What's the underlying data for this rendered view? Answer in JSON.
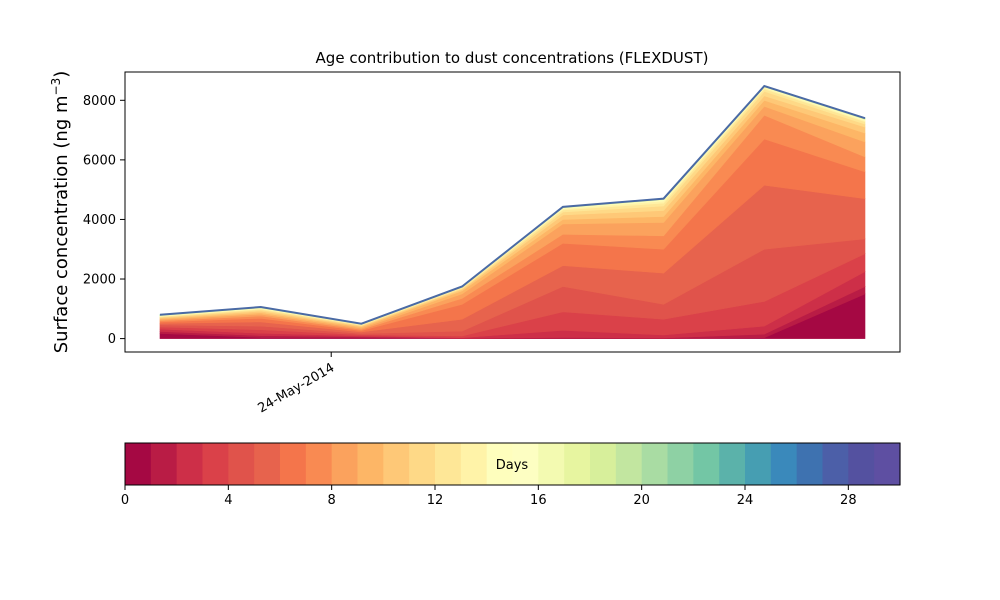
{
  "chart_data": [
    {
      "type": "area",
      "stacked": true,
      "title": "Age contribution to dust concentrations (FLEXDUST)",
      "ylabel_main": "Surface concentration (ng m",
      "ylabel_unit_exp": "−3",
      "ylabel_close": ")",
      "xlabel": "",
      "x_index": [
        0,
        1,
        2,
        3,
        4,
        5,
        6,
        7
      ],
      "x_tick_positions": [
        1.7
      ],
      "x_tick_labels": [
        "24-May-2014"
      ],
      "ylim": [
        -450,
        8950
      ],
      "yticks": [
        0,
        2000,
        4000,
        6000,
        8000
      ],
      "ytick_labels": [
        "0",
        "2000",
        "4000",
        "6000",
        "8000"
      ],
      "grid": false,
      "band_colors": [
        "#a50843",
        "#b91c45",
        "#cd2f48",
        "#da4149",
        "#e0534b",
        "#e7634d",
        "#f4754b",
        "#f98a52",
        "#fba25d",
        "#fdb666",
        "#fec877",
        "#fed987",
        "#fee797",
        "#fff3a8",
        "#fefebd",
        "#f3fab1",
        "#e7f5a0",
        "#d7ef9b",
        "#c2e6a0",
        "#a9dca3",
        "#8ed1a4",
        "#73c6a5",
        "#5bb2aa",
        "#469eb2",
        "#3a89bb",
        "#3e72b0",
        "#4c5fa8",
        "#5e4fa2"
      ],
      "totals": [
        800,
        1060,
        500,
        1750,
        4420,
        4700,
        8480,
        7400
      ],
      "band_cumulative_tops": [
        [
          170,
          40,
          30,
          0,
          0,
          0,
          30,
          1500
        ],
        [
          240,
          100,
          60,
          10,
          40,
          20,
          150,
          1750
        ],
        [
          320,
          180,
          90,
          30,
          280,
          120,
          420,
          2250
        ],
        [
          390,
          300,
          130,
          90,
          900,
          650,
          1250,
          2850
        ],
        [
          460,
          420,
          170,
          250,
          1750,
          1150,
          3000,
          3350
        ],
        [
          510,
          560,
          220,
          650,
          2450,
          2200,
          5150,
          4700
        ],
        [
          560,
          680,
          270,
          1150,
          3200,
          3000,
          6700,
          5600
        ],
        [
          600,
          760,
          310,
          1350,
          3500,
          3450,
          7500,
          6100
        ],
        [
          640,
          820,
          350,
          1500,
          3850,
          3900,
          7800,
          6600
        ],
        [
          670,
          870,
          390,
          1600,
          4000,
          4100,
          8000,
          6900
        ],
        [
          700,
          920,
          420,
          1650,
          4150,
          4300,
          8150,
          7100
        ],
        [
          720,
          960,
          440,
          1680,
          4250,
          4450,
          8300,
          7200
        ],
        [
          740,
          990,
          460,
          1710,
          4320,
          4550,
          8380,
          7280
        ],
        [
          755,
          1010,
          475,
          1725,
          4360,
          4620,
          8420,
          7320
        ],
        [
          765,
          1025,
          482,
          1732,
          4380,
          4650,
          8440,
          7345
        ],
        [
          772,
          1035,
          487,
          1737,
          4395,
          4670,
          8455,
          7362
        ],
        [
          778,
          1042,
          491,
          1741,
          4403,
          4682,
          8465,
          7375
        ],
        [
          784,
          1048,
          494,
          1744,
          4410,
          4690,
          8471,
          7385
        ],
        [
          789,
          1052,
          496,
          1746,
          4414,
          4694,
          8475,
          7392
        ],
        [
          793,
          1055,
          498,
          1748,
          4417,
          4697,
          8478,
          7396
        ],
        [
          796,
          1058,
          499,
          1749,
          4419,
          4699,
          8480,
          7398
        ],
        [
          798,
          1059,
          500,
          1750,
          4420,
          4700,
          8480,
          7400
        ],
        [
          800,
          1060,
          500,
          1750,
          4420,
          4700,
          8480,
          7400
        ],
        [
          800,
          1060,
          500,
          1750,
          4420,
          4700,
          8480,
          7400
        ],
        [
          800,
          1060,
          500,
          1750,
          4420,
          4700,
          8480,
          7400
        ],
        [
          800,
          1060,
          500,
          1750,
          4420,
          4700,
          8480,
          7400
        ],
        [
          800,
          1060,
          500,
          1750,
          4420,
          4700,
          8480,
          7400
        ],
        [
          800,
          1060,
          500,
          1750,
          4420,
          4700,
          8480,
          7400
        ]
      ],
      "total_line_color": "#4a6aa5"
    },
    {
      "type": "colorbar",
      "label": "Days",
      "range": [
        0,
        30
      ],
      "ticks": [
        0,
        4,
        8,
        12,
        16,
        20,
        24,
        28
      ],
      "tick_labels": [
        "0",
        "4",
        "8",
        "12",
        "16",
        "20",
        "24",
        "28"
      ],
      "colors": [
        "#a50843",
        "#b91c45",
        "#cd2f48",
        "#da4149",
        "#e0534b",
        "#e7634d",
        "#f4754b",
        "#f98a52",
        "#fba25d",
        "#fdb666",
        "#fec877",
        "#fed987",
        "#fee797",
        "#fff3a8",
        "#fefebd",
        "#fdfec2",
        "#f3fab1",
        "#e7f5a0",
        "#d7ef9b",
        "#c2e6a0",
        "#a9dca3",
        "#8ed1a4",
        "#73c6a5",
        "#5bb2aa",
        "#469eb2",
        "#3a89bb",
        "#3e72b0",
        "#4c5fa8",
        "#5451a0",
        "#5e4fa2"
      ]
    }
  ]
}
